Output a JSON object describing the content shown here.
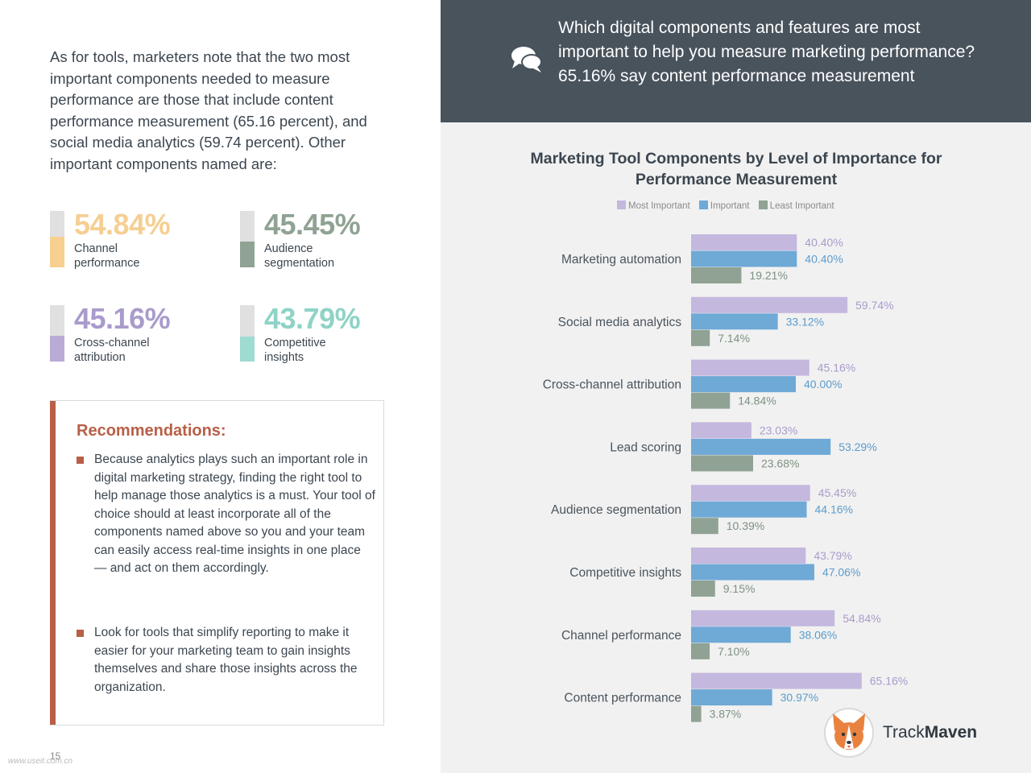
{
  "intro": "As for tools, marketers note that the two most important components needed to measure performance are those that include content performance measurement (65.16 percent), and social media analytics (59.74 percent). Other important components named are:",
  "stats": [
    {
      "value": "54.84%",
      "label": "Channel performance",
      "fraction": 0.5484,
      "color": "#f7cf8f",
      "text_color": "#f5cf92"
    },
    {
      "value": "45.45%",
      "label": "Audience segmentation",
      "fraction": 0.4545,
      "color": "#8fa293",
      "text_color": "#8fa293"
    },
    {
      "value": "45.16%",
      "label": "Cross-channel attribution",
      "fraction": 0.4516,
      "color": "#b9abd5",
      "text_color": "#a99bcb"
    },
    {
      "value": "43.79%",
      "label": "Competitive insights",
      "fraction": 0.4379,
      "color": "#9edbd0",
      "text_color": "#8fd3c7"
    }
  ],
  "recommendations": {
    "title": "Recommendations:",
    "items": [
      "Because analytics plays such an important role in digital marketing strategy, finding the right tool to help manage those analytics is a must. Your tool of choice should at least incorporate all of the components named above so you and your team can easily access real-time insights in one place — and act on them accordingly.",
      "Look for tools that simplify reporting to make it easier for your marketing team to gain insights themselves and share those insights across the organization."
    ]
  },
  "page_number": "15",
  "watermark": "www.useit.com.cn",
  "question": "Which digital components and features are most important to help you measure marketing performance? 65.16% say content performance measurement",
  "question_icon": "chat-bubbles-icon",
  "brand": {
    "prefix": "Track",
    "suffix": "Maven"
  },
  "colors": {
    "most": "#c4b8df",
    "important": "#6fa9d6",
    "least": "#8fa293",
    "accent": "#b85f47",
    "dark_panel": "#48535c"
  },
  "chart_data": {
    "type": "bar",
    "orientation": "horizontal",
    "title": "Marketing Tool Components by Level of Importance for Performance Measurement",
    "legend_position": "top",
    "categories": [
      "Marketing automation",
      "Social media analytics",
      "Cross-channel attribution",
      "Lead scoring",
      "Audience segmentation",
      "Competitive insights",
      "Channel performance",
      "Content performance"
    ],
    "series": [
      {
        "name": "Most Important",
        "color": "#c4b8df",
        "label_color": "#a99bcb",
        "values": [
          40.4,
          59.74,
          45.16,
          23.03,
          45.45,
          43.79,
          54.84,
          65.16
        ],
        "labels": [
          "40.40%",
          "59.74%",
          "45.16%",
          "23.03%",
          "45.45%",
          "43.79%",
          "54.84%",
          "65.16%"
        ]
      },
      {
        "name": "Important",
        "color": "#6fa9d6",
        "label_color": "#5b9ccd",
        "values": [
          40.4,
          33.12,
          40.0,
          53.29,
          44.16,
          47.06,
          38.06,
          30.97
        ],
        "labels": [
          "40.40%",
          "33.12%",
          "40.00%",
          "53.29%",
          "44.16%",
          "47.06%",
          "38.06%",
          "30.97%"
        ]
      },
      {
        "name": "Least Important",
        "color": "#8fa293",
        "label_color": "#7d9182",
        "values": [
          19.21,
          7.14,
          14.84,
          23.68,
          10.39,
          9.15,
          7.1,
          3.87
        ],
        "labels": [
          "19.21%",
          "7.14%",
          "14.84%",
          "23.68%",
          "10.39%",
          "9.15%",
          "7.10%",
          "3.87%"
        ]
      }
    ],
    "xlim": [
      0,
      100
    ],
    "grid": false
  }
}
